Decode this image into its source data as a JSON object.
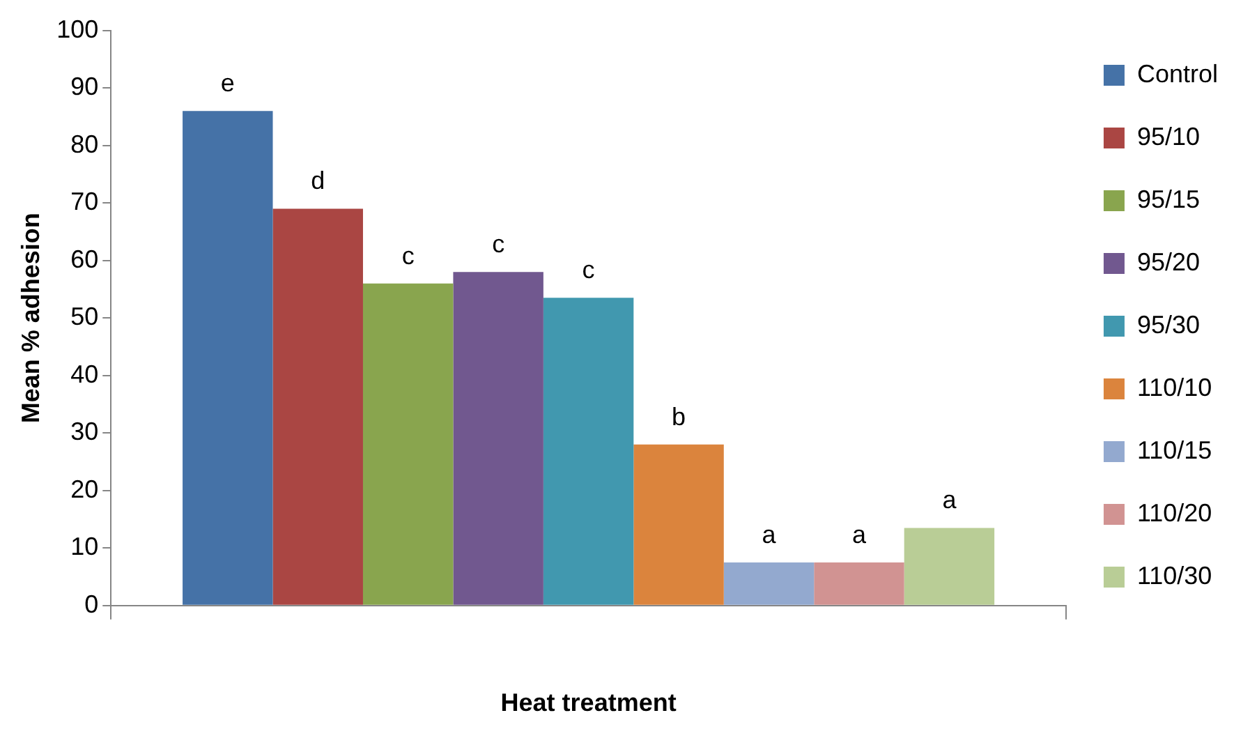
{
  "chart_data": {
    "type": "bar",
    "xlabel": "Heat treatment",
    "ylabel": "Mean % adhesion",
    "categories": [
      null
    ],
    "series": [
      {
        "name": "Control",
        "color": "#4572a7",
        "values": [
          86
        ]
      },
      {
        "name": "95/10",
        "color": "#aa4643",
        "values": [
          69
        ]
      },
      {
        "name": "95/15",
        "color": "#89a54e",
        "values": [
          56
        ]
      },
      {
        "name": "95/20",
        "color": "#71588f",
        "values": [
          58
        ]
      },
      {
        "name": "95/30",
        "color": "#4198af",
        "values": [
          53.5
        ]
      },
      {
        "name": "110/10",
        "color": "#db843d",
        "values": [
          28
        ]
      },
      {
        "name": "110/15",
        "color": "#93a9cf",
        "values": [
          7.5
        ]
      },
      {
        "name": "110/20",
        "color": "#d19392",
        "values": [
          7.5
        ]
      },
      {
        "name": "110/30",
        "color": "#b9cd96",
        "values": [
          13.5
        ]
      }
    ],
    "annotations": [
      "e",
      "d",
      "c",
      "c",
      "c",
      "b",
      "a",
      "a",
      "a"
    ],
    "ylim": [
      0,
      100
    ],
    "yticks": [
      0,
      10,
      20,
      30,
      40,
      50,
      60,
      70,
      80,
      90,
      100
    ],
    "grid": false,
    "legend": "right",
    "tick_labels": "y"
  }
}
